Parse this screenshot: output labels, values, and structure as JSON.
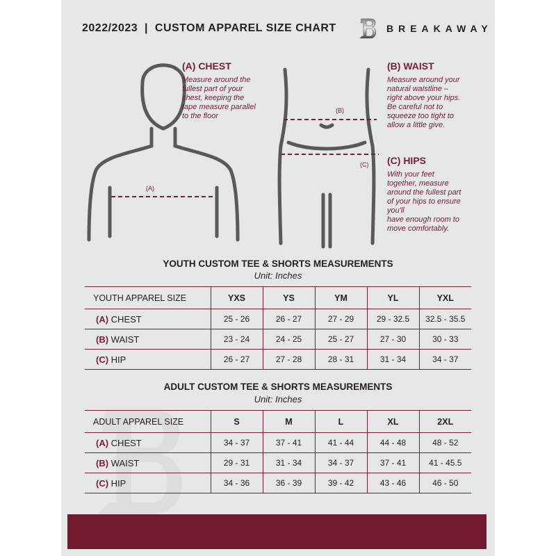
{
  "header": {
    "title": "2022/2023  |  CUSTOM APPAREL SIZE CHART",
    "brand": "BREAKAWAY",
    "logo_letter": "B"
  },
  "measures": {
    "chest": {
      "heading": "(A) CHEST",
      "marker": "(A)",
      "lines": [
        "Measure around the",
        "fullest part of your",
        "chest, keeping the",
        "tape measure parallel",
        "to the floor"
      ]
    },
    "waist": {
      "heading": "(B) WAIST",
      "marker": "(B)",
      "lines": [
        "Measure around your",
        "natural waistline –",
        "right above your hips.",
        "Be careful not to",
        "squeeze too tight to",
        "allow a little give."
      ]
    },
    "hips": {
      "heading": "(C) HIPS",
      "marker": "(C)",
      "lines": [
        "With your feet",
        "together, measure",
        "around the fullest part",
        "of your hips to ensure",
        "you'll",
        "have enough room to",
        "move comfortably."
      ]
    }
  },
  "youth": {
    "title": "YOUTH CUSTOM TEE & SHORTS MEASUREMENTS",
    "unit": "Unit: Inches",
    "header_label": "YOUTH APPAREL SIZE",
    "sizes": [
      "YXS",
      "YS",
      "YM",
      "YL",
      "YXL"
    ],
    "rows": [
      {
        "letter": "(A)",
        "name": "CHEST",
        "values": [
          "25 - 26",
          "26 - 27",
          "27 - 29",
          "29 - 32.5",
          "32.5 - 35.5"
        ]
      },
      {
        "letter": "(B)",
        "name": "WAIST",
        "values": [
          "23 - 24",
          "24 - 25",
          "25 - 27",
          "27 - 30",
          "30 - 33"
        ]
      },
      {
        "letter": "(C)",
        "name": "HIP",
        "values": [
          "26 - 27",
          "27 - 28",
          "28 - 31",
          "31 - 34",
          "34 - 37"
        ]
      }
    ]
  },
  "adult": {
    "title": "ADULT CUSTOM TEE & SHORTS MEASUREMENTS",
    "unit": "Unit: Inches",
    "header_label": "ADULT APPAREL SIZE",
    "sizes": [
      "S",
      "M",
      "L",
      "XL",
      "2XL"
    ],
    "rows": [
      {
        "letter": "(A)",
        "name": "CHEST",
        "values": [
          "34 - 37",
          "37 - 41",
          "41 - 44",
          "44 - 48",
          "48 - 52"
        ]
      },
      {
        "letter": "(B)",
        "name": "WAIST",
        "values": [
          "29 - 31",
          "31 - 34",
          "34 - 37",
          "37 - 41",
          "41 - 45.5"
        ]
      },
      {
        "letter": "(C)",
        "name": "HIP",
        "values": [
          "34 - 36",
          "36 - 39",
          "39 - 42",
          "43 - 46",
          "46 - 50"
        ]
      }
    ]
  },
  "colors": {
    "accent": "#7a1c33",
    "footer": "#711a30",
    "background": "#e6e7e8"
  }
}
